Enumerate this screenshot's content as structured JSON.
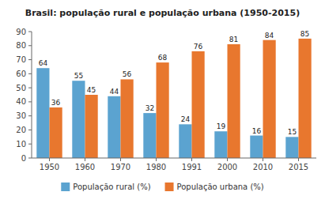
{
  "chart_data": {
    "type": "bar",
    "title": "Brasil: população rural e população urbana (1950-2015)",
    "categories": [
      "1950",
      "1960",
      "1970",
      "1980",
      "1991",
      "2000",
      "2010",
      "2015"
    ],
    "series": [
      {
        "name": "População rural (%)",
        "color": "#5BA3D0",
        "values": [
          64,
          55,
          44,
          32,
          24,
          19,
          16,
          15
        ]
      },
      {
        "name": "População urbana (%)",
        "color": "#E8772E",
        "values": [
          36,
          45,
          56,
          68,
          76,
          81,
          84,
          85
        ]
      }
    ],
    "ylim": [
      0,
      90
    ],
    "yticks": [
      0,
      10,
      20,
      30,
      40,
      50,
      60,
      70,
      80,
      90
    ],
    "grid": false,
    "legend": "bottom",
    "data_labels": true
  }
}
